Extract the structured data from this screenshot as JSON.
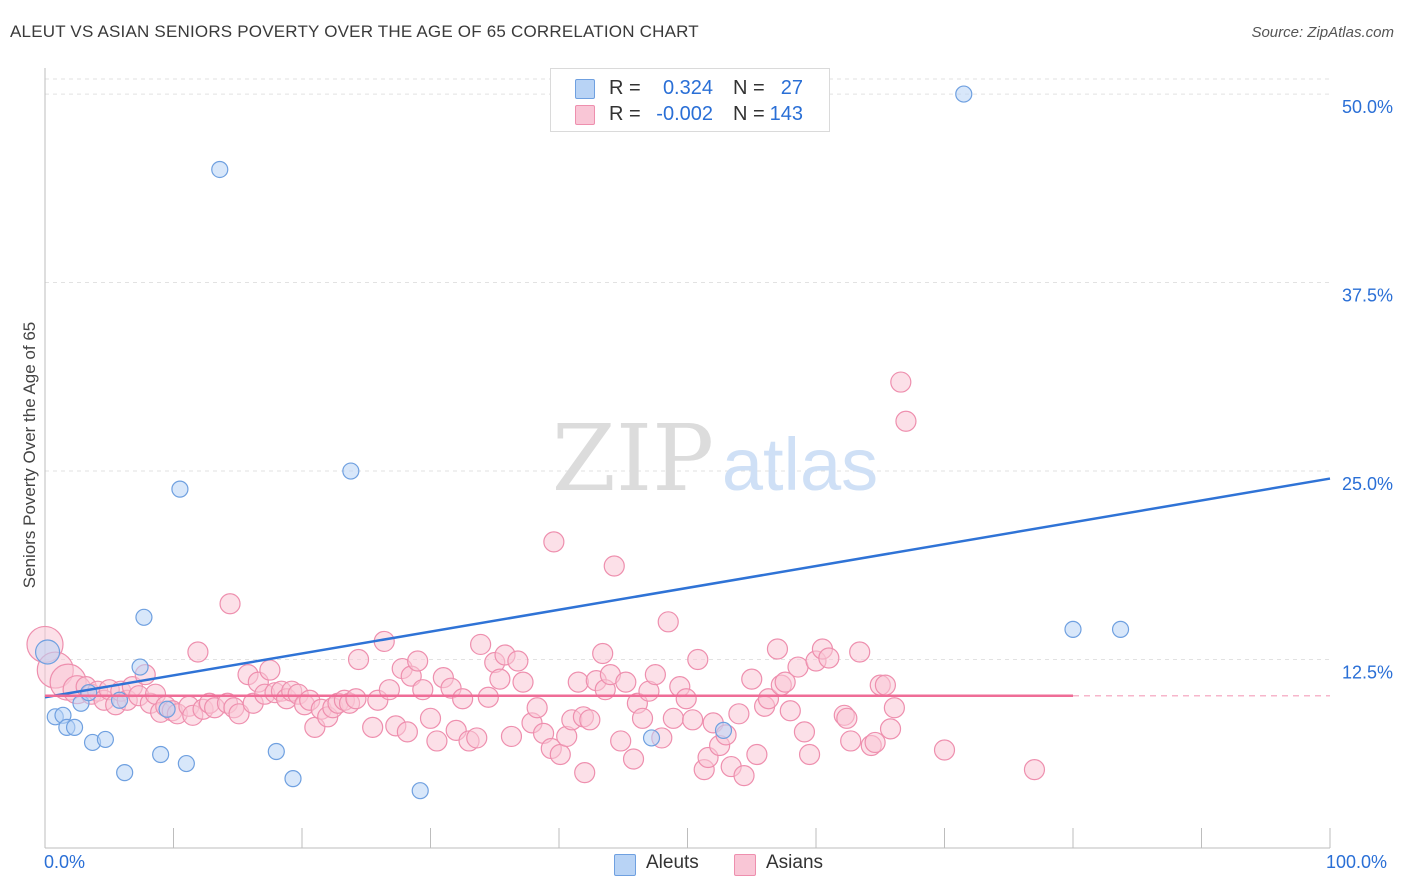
{
  "header": {
    "title": "ALEUT VS ASIAN SENIORS POVERTY OVER THE AGE OF 65 CORRELATION CHART",
    "source": "Source: ZipAtlas.com"
  },
  "watermark": {
    "zip": "ZIP",
    "atlas": "atlas"
  },
  "legend": {
    "rows": [
      {
        "r_label": "R =",
        "r_value": "0.324",
        "n_label": "N =",
        "n_value": "27",
        "color": "#b8d3f5",
        "border": "#6fa0e0"
      },
      {
        "r_label": "R =",
        "r_value": "-0.002",
        "n_label": "N =",
        "n_value": "143",
        "color": "#f9c6d6",
        "border": "#ee8fae"
      }
    ]
  },
  "bottom_legend": [
    {
      "label": "Aleuts",
      "color": "#b8d3f5",
      "border": "#6fa0e0"
    },
    {
      "label": "Asians",
      "color": "#f9c6d6",
      "border": "#ee8fae"
    }
  ],
  "x_axis": {
    "min_label": "0.0%",
    "max_label": "100.0%"
  },
  "chart_data": {
    "type": "scatter",
    "title": "ALEUT VS ASIAN SENIORS POVERTY OVER THE AGE OF 65 CORRELATION CHART",
    "xlabel": "",
    "ylabel": "Seniors Poverty Over the Age of 65",
    "xlim": [
      0,
      100
    ],
    "ylim": [
      0,
      51
    ],
    "y_ticks": [
      {
        "value": 12.5,
        "label": "12.5%"
      },
      {
        "value": 25.0,
        "label": "25.0%"
      },
      {
        "value": 37.5,
        "label": "37.5%"
      },
      {
        "value": 50.0,
        "label": "50.0%"
      }
    ],
    "grid": "horizontal-dashed",
    "legend_position": "top-center",
    "series": [
      {
        "name": "Aleuts",
        "color": "#6fa0e0",
        "fill": "#b8d3f5",
        "trend": {
          "x": [
            0,
            100
          ],
          "y": [
            10.0,
            24.5
          ],
          "color": "#2f73d6"
        },
        "points": [
          [
            0.2,
            13.0,
            12
          ],
          [
            0.8,
            8.7,
            8
          ],
          [
            1.4,
            8.8,
            8
          ],
          [
            1.7,
            8.0,
            8
          ],
          [
            2.3,
            8.0,
            8
          ],
          [
            2.8,
            9.6,
            8
          ],
          [
            3.4,
            10.3,
            8
          ],
          [
            3.7,
            7.0,
            8
          ],
          [
            4.7,
            7.2,
            8
          ],
          [
            5.8,
            9.8,
            8
          ],
          [
            6.2,
            5.0,
            8
          ],
          [
            7.4,
            12.0,
            8
          ],
          [
            7.7,
            15.3,
            8
          ],
          [
            9.0,
            6.2,
            8
          ],
          [
            9.5,
            9.2,
            8
          ],
          [
            10.5,
            23.8,
            8
          ],
          [
            11.0,
            5.6,
            8
          ],
          [
            13.6,
            45.0,
            8
          ],
          [
            18.0,
            6.4,
            8
          ],
          [
            19.3,
            4.6,
            8
          ],
          [
            23.8,
            25.0,
            8
          ],
          [
            29.2,
            3.8,
            8
          ],
          [
            47.2,
            7.3,
            8
          ],
          [
            52.8,
            7.8,
            8
          ],
          [
            71.5,
            50.0,
            8
          ],
          [
            80.0,
            14.5,
            8
          ],
          [
            83.7,
            14.5,
            8
          ]
        ]
      },
      {
        "name": "Asians",
        "color": "#ee8fae",
        "fill": "#f9c6d6",
        "trend": {
          "x": [
            0,
            80
          ],
          "y": [
            10.1,
            10.1
          ],
          "x_dashed_to": 100,
          "color": "#ef6d97"
        },
        "points": [
          [
            0.0,
            13.5,
            18
          ],
          [
            0.8,
            11.8,
            18
          ],
          [
            1.8,
            11.0,
            18
          ],
          [
            2.5,
            10.5,
            14
          ],
          [
            3.2,
            10.7,
            10
          ],
          [
            3.6,
            10.2,
            10
          ],
          [
            4.1,
            10.4,
            10
          ],
          [
            4.6,
            9.8,
            10
          ],
          [
            5.0,
            10.5,
            10
          ],
          [
            5.5,
            9.5,
            10
          ],
          [
            5.9,
            10.4,
            10
          ],
          [
            6.4,
            9.8,
            10
          ],
          [
            6.8,
            10.7,
            10
          ],
          [
            7.3,
            10.1,
            10
          ],
          [
            7.8,
            11.5,
            10
          ],
          [
            8.2,
            9.6,
            10
          ],
          [
            8.6,
            10.2,
            10
          ],
          [
            9.0,
            9.0,
            10
          ],
          [
            9.4,
            9.4,
            10
          ],
          [
            9.9,
            9.1,
            10
          ],
          [
            10.3,
            8.9,
            10
          ],
          [
            11.2,
            9.4,
            10
          ],
          [
            11.5,
            8.8,
            10
          ],
          [
            11.9,
            13.0,
            10
          ],
          [
            12.3,
            9.2,
            10
          ],
          [
            12.8,
            9.6,
            10
          ],
          [
            13.2,
            9.3,
            10
          ],
          [
            14.2,
            9.6,
            10
          ],
          [
            14.7,
            9.3,
            10
          ],
          [
            15.1,
            8.9,
            10
          ],
          [
            14.4,
            16.2,
            10
          ],
          [
            15.8,
            11.5,
            10
          ],
          [
            16.2,
            9.6,
            10
          ],
          [
            16.6,
            11.0,
            10
          ],
          [
            17.1,
            10.2,
            10
          ],
          [
            17.5,
            11.8,
            10
          ],
          [
            17.9,
            10.3,
            10
          ],
          [
            18.4,
            10.4,
            10
          ],
          [
            18.8,
            9.9,
            10
          ],
          [
            19.2,
            10.4,
            10
          ],
          [
            19.7,
            10.2,
            10
          ],
          [
            20.2,
            9.5,
            10
          ],
          [
            20.6,
            9.8,
            10
          ],
          [
            21.0,
            8.0,
            10
          ],
          [
            21.5,
            9.2,
            10
          ],
          [
            22.0,
            8.7,
            10
          ],
          [
            22.4,
            9.3,
            10
          ],
          [
            22.8,
            9.6,
            10
          ],
          [
            23.3,
            9.8,
            10
          ],
          [
            23.7,
            9.6,
            10
          ],
          [
            24.2,
            9.9,
            10
          ],
          [
            24.4,
            12.5,
            10
          ],
          [
            25.5,
            8.0,
            10
          ],
          [
            25.9,
            9.8,
            10
          ],
          [
            26.4,
            13.7,
            10
          ],
          [
            26.8,
            10.5,
            10
          ],
          [
            27.3,
            8.1,
            10
          ],
          [
            27.8,
            11.9,
            10
          ],
          [
            28.2,
            7.7,
            10
          ],
          [
            28.5,
            11.4,
            10
          ],
          [
            29.0,
            12.4,
            10
          ],
          [
            29.4,
            10.5,
            10
          ],
          [
            30.0,
            8.6,
            10
          ],
          [
            30.5,
            7.1,
            10
          ],
          [
            31.0,
            11.3,
            10
          ],
          [
            31.6,
            10.6,
            10
          ],
          [
            32.0,
            7.8,
            10
          ],
          [
            32.5,
            9.9,
            10
          ],
          [
            33.0,
            7.1,
            10
          ],
          [
            33.6,
            7.3,
            10
          ],
          [
            33.9,
            13.5,
            10
          ],
          [
            34.5,
            10.0,
            10
          ],
          [
            35.0,
            12.3,
            10
          ],
          [
            35.4,
            11.2,
            10
          ],
          [
            35.8,
            12.8,
            10
          ],
          [
            36.3,
            7.4,
            10
          ],
          [
            36.8,
            12.4,
            10
          ],
          [
            37.2,
            11.0,
            10
          ],
          [
            37.9,
            8.3,
            10
          ],
          [
            38.3,
            9.3,
            10
          ],
          [
            38.8,
            7.6,
            10
          ],
          [
            39.4,
            6.6,
            10
          ],
          [
            39.6,
            20.3,
            10
          ],
          [
            40.1,
            6.2,
            10
          ],
          [
            40.6,
            7.4,
            10
          ],
          [
            41.0,
            8.5,
            10
          ],
          [
            41.5,
            11.0,
            10
          ],
          [
            41.9,
            8.7,
            10
          ],
          [
            42.4,
            8.5,
            10
          ],
          [
            42.9,
            11.1,
            10
          ],
          [
            43.4,
            12.9,
            10
          ],
          [
            43.6,
            10.5,
            10
          ],
          [
            44.0,
            11.5,
            10
          ],
          [
            44.3,
            18.7,
            10
          ],
          [
            44.8,
            7.1,
            10
          ],
          [
            45.2,
            11.0,
            10
          ],
          [
            45.8,
            5.9,
            10
          ],
          [
            46.1,
            9.6,
            10
          ],
          [
            46.5,
            8.6,
            10
          ],
          [
            47.0,
            10.4,
            10
          ],
          [
            47.5,
            11.5,
            10
          ],
          [
            48.0,
            7.3,
            10
          ],
          [
            48.5,
            15.0,
            10
          ],
          [
            48.9,
            8.6,
            10
          ],
          [
            49.4,
            10.7,
            10
          ],
          [
            49.9,
            9.9,
            10
          ],
          [
            50.4,
            8.5,
            10
          ],
          [
            50.8,
            12.5,
            10
          ],
          [
            51.3,
            5.2,
            10
          ],
          [
            51.6,
            6.0,
            10
          ],
          [
            52.0,
            8.3,
            10
          ],
          [
            52.5,
            6.8,
            10
          ],
          [
            53.0,
            7.5,
            10
          ],
          [
            53.4,
            5.4,
            10
          ],
          [
            54.0,
            8.9,
            10
          ],
          [
            54.4,
            4.8,
            10
          ],
          [
            55.0,
            11.2,
            10
          ],
          [
            55.4,
            6.2,
            10
          ],
          [
            56.0,
            9.4,
            10
          ],
          [
            56.3,
            9.9,
            10
          ],
          [
            57.0,
            13.2,
            10
          ],
          [
            57.3,
            10.8,
            10
          ],
          [
            57.6,
            11.0,
            10
          ],
          [
            58.0,
            9.1,
            10
          ],
          [
            58.6,
            12.0,
            10
          ],
          [
            59.1,
            7.7,
            10
          ],
          [
            59.5,
            6.2,
            10
          ],
          [
            60.0,
            12.4,
            10
          ],
          [
            60.5,
            13.2,
            10
          ],
          [
            61.0,
            12.6,
            10
          ],
          [
            62.2,
            8.8,
            10
          ],
          [
            62.4,
            8.6,
            10
          ],
          [
            62.7,
            7.1,
            10
          ],
          [
            63.4,
            13.0,
            10
          ],
          [
            64.3,
            6.8,
            10
          ],
          [
            64.6,
            7.0,
            10
          ],
          [
            65.0,
            10.8,
            10
          ],
          [
            65.4,
            10.8,
            10
          ],
          [
            65.8,
            7.9,
            10
          ],
          [
            66.1,
            9.3,
            10
          ],
          [
            66.6,
            30.9,
            10
          ],
          [
            70.0,
            6.5,
            10
          ],
          [
            77.0,
            5.2,
            10
          ],
          [
            67.0,
            28.3,
            10
          ],
          [
            42.0,
            5.0,
            10
          ]
        ]
      }
    ]
  }
}
